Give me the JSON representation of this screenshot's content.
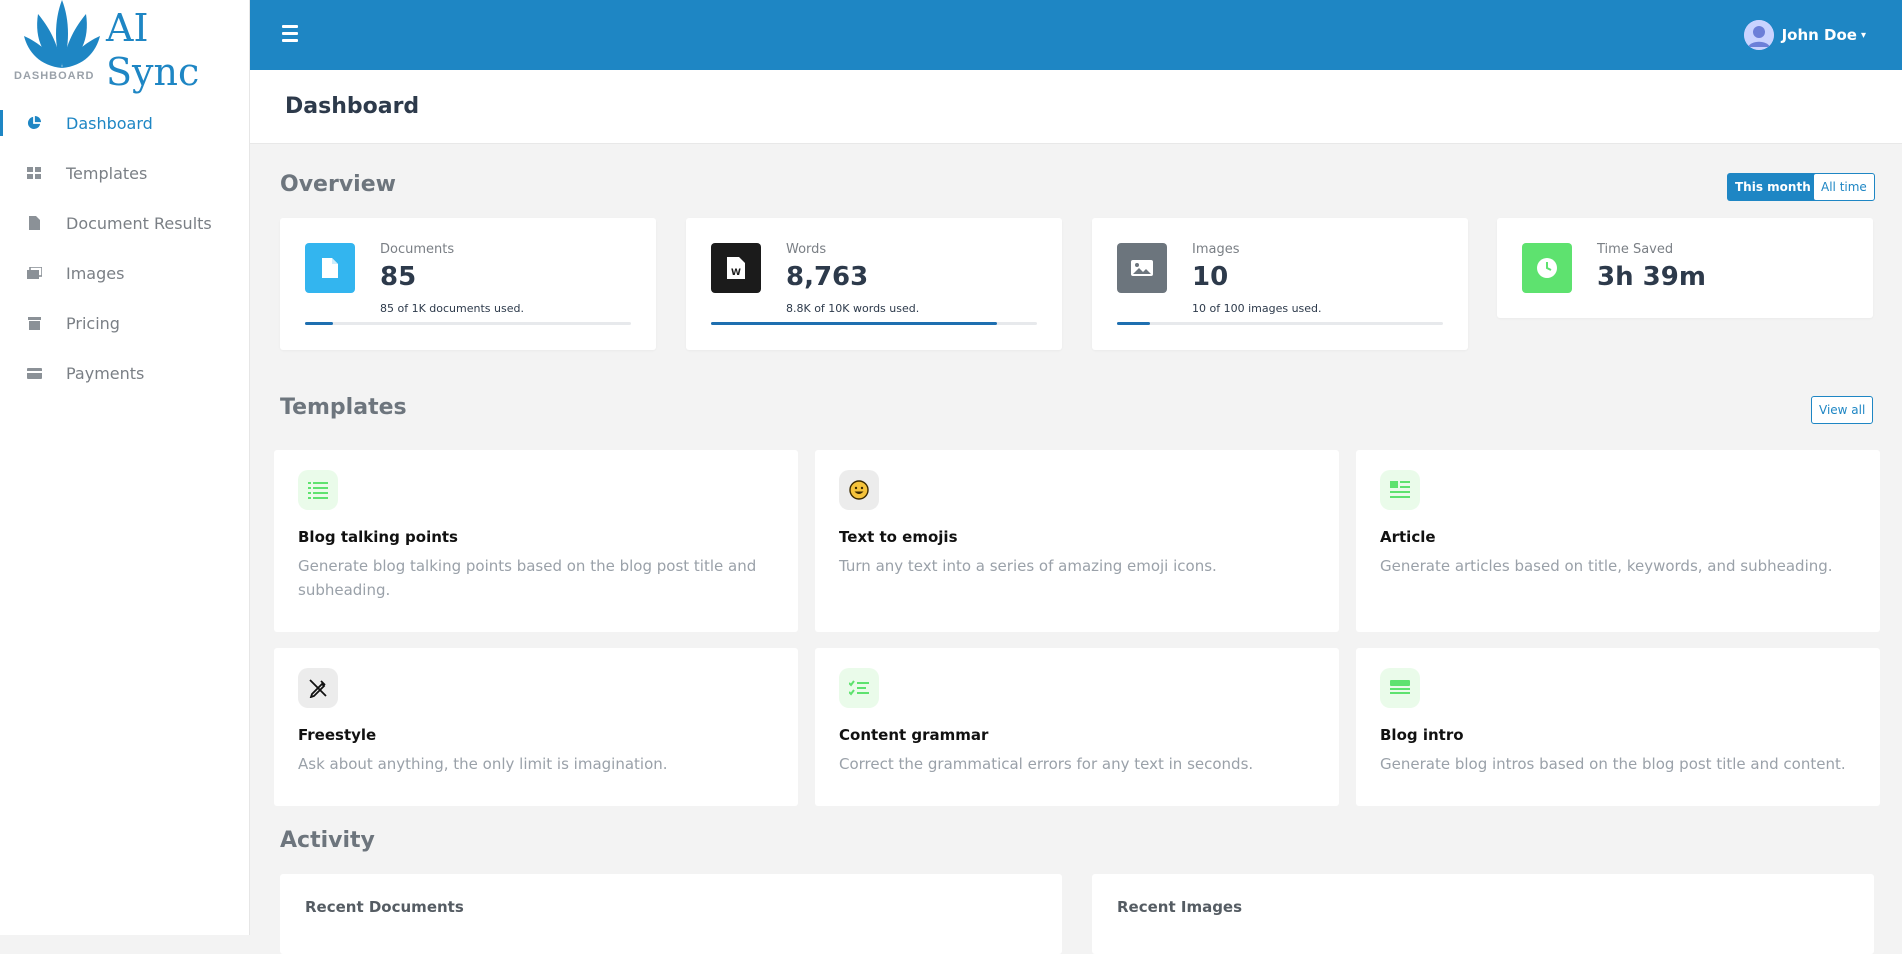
{
  "brand": {
    "name": "AI Sync",
    "subtitle": "DASHBOARD"
  },
  "sidebar": {
    "items": [
      {
        "label": "Dashboard",
        "icon": "pie-chart-icon",
        "active": true
      },
      {
        "label": "Templates",
        "icon": "grid-icon"
      },
      {
        "label": "Document Results",
        "icon": "document-icon"
      },
      {
        "label": "Images",
        "icon": "images-icon"
      },
      {
        "label": "Pricing",
        "icon": "archive-icon"
      },
      {
        "label": "Payments",
        "icon": "credit-card-icon"
      }
    ]
  },
  "topbar": {
    "user_name": "John Doe",
    "caret": "▾"
  },
  "page": {
    "title": "Dashboard"
  },
  "overview": {
    "title": "Overview",
    "this_month_label": "This month",
    "all_time_label": "All time",
    "stats": [
      {
        "label": "Documents",
        "value": "85",
        "sub": "85 of 1K documents used.",
        "progress": 0.085,
        "icon": "document-icon",
        "color": "#33b5ef"
      },
      {
        "label": "Words",
        "value": "8,763",
        "sub": "8.8K of 10K words used.",
        "progress": 0.876,
        "icon": "word-file-icon",
        "color": "#1b1b1b"
      },
      {
        "label": "Images",
        "value": "10",
        "sub": "10 of 100 images used.",
        "progress": 0.1,
        "icon": "image-icon",
        "color": "#6c757d"
      },
      {
        "label": "Time Saved",
        "value": "3h 39m",
        "icon": "clock-icon",
        "color": "#5ee26f"
      }
    ]
  },
  "templates": {
    "title": "Templates",
    "view_all_label": "View all",
    "items": [
      {
        "title": "Blog talking points",
        "desc": "Generate blog talking points based on the blog post title and subheading.",
        "icon": "list-icon"
      },
      {
        "title": "Text to emojis",
        "desc": "Turn any text into a series of amazing emoji icons.",
        "icon": "smiley-icon"
      },
      {
        "title": "Article",
        "desc": "Generate articles based on title, keywords, and subheading.",
        "icon": "article-icon"
      },
      {
        "title": "Freestyle",
        "desc": "Ask about anything, the only limit is imagination.",
        "icon": "pen-slash-icon"
      },
      {
        "title": "Content grammar",
        "desc": "Correct the grammatical errors for any text in seconds.",
        "icon": "checklist-icon"
      },
      {
        "title": "Blog intro",
        "desc": "Generate blog intros based on the blog post title and content.",
        "icon": "rows-icon"
      }
    ]
  },
  "activity": {
    "title": "Activity",
    "recent_documents_label": "Recent Documents",
    "recent_images_label": "Recent Images"
  }
}
